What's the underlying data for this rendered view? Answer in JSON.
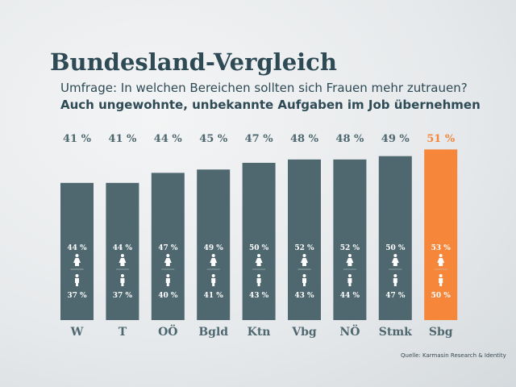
{
  "title": "Bundesland-Vergleich",
  "subtitle": "Umfrage: In welchen Bereichen sollten sich Frauen mehr zutrauen?",
  "subtitle2": "Auch ungewohnte, unbekannte Aufgaben im Job übernehmen",
  "source": "Quelle: Karmasin Research & Identity",
  "colors": {
    "bar": "#4f6870",
    "highlight": "#f5863a",
    "label": "#4f6870",
    "text": "#2e4a55"
  },
  "icons": {
    "women": "female-figure-icon",
    "men": "male-figure-icon"
  },
  "chart_data": {
    "type": "bar",
    "categories": [
      "W",
      "T",
      "OÖ",
      "Bgld",
      "Ktn",
      "Vbg",
      "NÖ",
      "Stmk",
      "Sbg"
    ],
    "values": [
      41,
      41,
      44,
      45,
      47,
      48,
      48,
      49,
      51
    ],
    "value_labels": [
      "41 %",
      "41 %",
      "44 %",
      "45 %",
      "47 %",
      "48 %",
      "48 %",
      "49 %",
      "51 %"
    ],
    "women_labels": [
      "44 %",
      "44 %",
      "47 %",
      "49 %",
      "50 %",
      "52 %",
      "52 %",
      "50 %",
      "53 %"
    ],
    "men_labels": [
      "37 %",
      "37 %",
      "40 %",
      "41 %",
      "43 %",
      "43 %",
      "44 %",
      "47 %",
      "50 %"
    ],
    "highlight_index": 8,
    "unit": "%",
    "grid": false
  }
}
